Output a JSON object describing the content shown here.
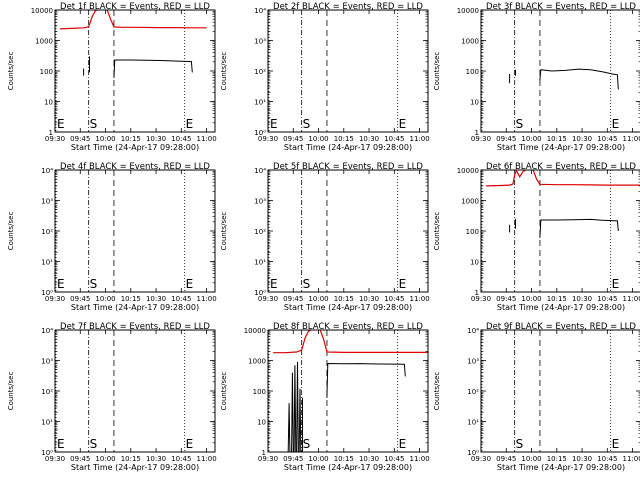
{
  "chart_data": [
    {
      "type": "line",
      "title": "Det 1f BLACK = Events, RED = LLD",
      "xlabel": "Start Time (24-Apr-17 09:28:00)",
      "ylabel": "Counts/sec",
      "x_ticks": [
        "09:30",
        "09:45",
        "10:00",
        "10:15",
        "10:30",
        "10:45",
        "11:00"
      ],
      "x_range": [
        0,
        95
      ],
      "y_scale": "log",
      "y_range": [
        1,
        10000
      ],
      "y_ticks": [
        "1",
        "10",
        "100",
        "1000",
        "10000"
      ],
      "markers": [
        {
          "label": "E",
          "x": -1,
          "style": "dotted"
        },
        {
          "label": "S",
          "x": 20,
          "style": "dashdot"
        },
        {
          "label": "",
          "x": 35,
          "style": "dashed"
        },
        {
          "label": "E",
          "x": 77,
          "style": "dotted"
        }
      ],
      "series": [
        {
          "name": "Events",
          "color": "#000000",
          "segments": [
            [
              [
                17,
                70
              ],
              [
                17,
                90
              ],
              [
                17,
                120
              ]
            ],
            [
              [
                20.5,
                90
              ],
              [
                20.5,
                140
              ],
              [
                20.5,
                300
              ]
            ],
            [
              [
                35,
                60
              ],
              [
                35.5,
                230
              ],
              [
                45,
                230
              ],
              [
                55,
                225
              ],
              [
                65,
                220
              ],
              [
                75,
                210
              ],
              [
                81,
                205
              ],
              [
                81.5,
                90
              ]
            ]
          ]
        },
        {
          "name": "LLD",
          "color": "#dd0000",
          "segments": [
            [
              [
                3,
                2400
              ],
              [
                10,
                2500
              ],
              [
                17,
                2600
              ],
              [
                20,
                2800
              ],
              [
                22,
                6000
              ],
              [
                24,
                9500
              ],
              [
                27,
                11000
              ],
              [
                31,
                10000
              ],
              [
                33,
                5000
              ],
              [
                35,
                2800
              ],
              [
                40,
                2700
              ],
              [
                50,
                2700
              ],
              [
                60,
                2650
              ],
              [
                70,
                2650
              ],
              [
                80,
                2600
              ],
              [
                90,
                2600
              ]
            ]
          ]
        }
      ]
    },
    {
      "type": "line",
      "title": "Det 2f BLACK = Events, RED = LLD",
      "xlabel": "Start Time (24-Apr-17 09:28:00)",
      "ylabel": "Counts/sec",
      "x_ticks": [
        "09:30",
        "09:45",
        "10:00",
        "10:15",
        "10:30",
        "10:45",
        "11:00"
      ],
      "x_range": [
        0,
        95
      ],
      "y_scale": "log",
      "y_range": [
        1,
        10000
      ],
      "y_ticks": [
        "10⁰",
        "10¹",
        "10²",
        "10³",
        "10⁴"
      ],
      "markers": [
        {
          "label": "E",
          "x": -1,
          "style": "dotted"
        },
        {
          "label": "S",
          "x": 20,
          "style": "dashdot"
        },
        {
          "label": "",
          "x": 35,
          "style": "dashed"
        },
        {
          "label": "E",
          "x": 77,
          "style": "dotted"
        }
      ],
      "series": []
    },
    {
      "type": "line",
      "title": "Det 3f BLACK = Events, RED = LLD",
      "xlabel": "Start Time (24-Apr-17 09:28:00)",
      "ylabel": "Counts/sec",
      "x_ticks": [
        "09:30",
        "09:45",
        "10:00",
        "10:15",
        "10:30",
        "10:45",
        "11:00"
      ],
      "x_range": [
        0,
        95
      ],
      "y_scale": "log",
      "y_range": [
        1,
        10000
      ],
      "y_ticks": [
        "1",
        "10",
        "100",
        "1000",
        "10000"
      ],
      "markers": [
        {
          "label": "",
          "x": -1,
          "style": "dotted"
        },
        {
          "label": "S",
          "x": 20,
          "style": "dashdot"
        },
        {
          "label": "",
          "x": 35,
          "style": "dashed"
        },
        {
          "label": "E",
          "x": 77,
          "style": "dotted"
        }
      ],
      "series": [
        {
          "name": "Events",
          "color": "#000000",
          "segments": [
            [
              [
                17,
                40
              ],
              [
                17,
                60
              ],
              [
                17,
                80
              ]
            ],
            [
              [
                20.5,
                70
              ],
              [
                20.5,
                110
              ]
            ],
            [
              [
                35,
                50
              ],
              [
                35.5,
                110
              ],
              [
                42,
                100
              ],
              [
                50,
                105
              ],
              [
                58,
                115
              ],
              [
                65,
                110
              ],
              [
                72,
                95
              ],
              [
                78,
                80
              ],
              [
                81,
                75
              ],
              [
                81.5,
                25
              ]
            ]
          ]
        }
      ]
    },
    {
      "type": "line",
      "title": "Det 4f BLACK = Events, RED = LLD",
      "xlabel": "Start Time (24-Apr-17 09:28:00)",
      "ylabel": "Counts/sec",
      "x_ticks": [
        "09:30",
        "09:45",
        "10:00",
        "10:15",
        "10:30",
        "10:45",
        "11:00"
      ],
      "x_range": [
        0,
        95
      ],
      "y_scale": "log",
      "y_range": [
        1,
        10000
      ],
      "y_ticks": [
        "10⁰",
        "10¹",
        "10²",
        "10³",
        "10⁴"
      ],
      "markers": [
        {
          "label": "E",
          "x": -1,
          "style": "dotted"
        },
        {
          "label": "S",
          "x": 20,
          "style": "dashdot"
        },
        {
          "label": "",
          "x": 35,
          "style": "dashed"
        },
        {
          "label": "E",
          "x": 77,
          "style": "dotted"
        }
      ],
      "series": []
    },
    {
      "type": "line",
      "title": "Det 5f BLACK = Events, RED = LLD",
      "xlabel": "Start Time (24-Apr-17 09:28:00)",
      "ylabel": "Counts/sec",
      "x_ticks": [
        "09:30",
        "09:45",
        "10:00",
        "10:15",
        "10:30",
        "10:45",
        "11:00"
      ],
      "x_range": [
        0,
        95
      ],
      "y_scale": "log",
      "y_range": [
        1,
        10000
      ],
      "y_ticks": [
        "10⁰",
        "10¹",
        "10²",
        "10³",
        "10⁴"
      ],
      "markers": [
        {
          "label": "E",
          "x": -1,
          "style": "dotted"
        },
        {
          "label": "S",
          "x": 20,
          "style": "dashdot"
        },
        {
          "label": "",
          "x": 35,
          "style": "dashed"
        },
        {
          "label": "E",
          "x": 77,
          "style": "dotted"
        }
      ],
      "series": []
    },
    {
      "type": "line",
      "title": "Det 6f BLACK = Events, RED = LLD",
      "xlabel": "Start Time (24-Apr-17 09:28:00)",
      "ylabel": "Counts/sec",
      "x_ticks": [
        "09:30",
        "09:45",
        "10:00",
        "10:15",
        "10:30",
        "10:45",
        "11:00"
      ],
      "x_range": [
        0,
        95
      ],
      "y_scale": "log",
      "y_range": [
        1,
        10000
      ],
      "y_ticks": [
        "1",
        "10",
        "100",
        "1000",
        "10000"
      ],
      "markers": [
        {
          "label": "",
          "x": -1,
          "style": "dotted"
        },
        {
          "label": "",
          "x": 20,
          "style": "dashdot"
        },
        {
          "label": "",
          "x": 35,
          "style": "dashed"
        },
        {
          "label": "E",
          "x": 77,
          "style": "dotted"
        }
      ],
      "series": [
        {
          "name": "Events",
          "color": "#000000",
          "segments": [
            [
              [
                17,
                90
              ],
              [
                17,
                130
              ],
              [
                17,
                160
              ]
            ],
            [
              [
                20.5,
                120
              ],
              [
                20.5,
                250
              ]
            ],
            [
              [
                35,
                60
              ],
              [
                35.5,
                230
              ],
              [
                45,
                230
              ],
              [
                55,
                235
              ],
              [
                65,
                240
              ],
              [
                72,
                225
              ],
              [
                81,
                215
              ],
              [
                81.5,
                100
              ]
            ]
          ]
        },
        {
          "name": "LLD",
          "color": "#dd0000",
          "segments": [
            [
              [
                3,
                3000
              ],
              [
                12,
                3100
              ],
              [
                17,
                3200
              ],
              [
                19,
                3500
              ],
              [
                20,
                7000
              ],
              [
                21,
                9500
              ],
              [
                23,
                6000
              ],
              [
                25,
                9000
              ],
              [
                28,
                11000
              ],
              [
                31,
                10000
              ],
              [
                33,
                5000
              ],
              [
                35,
                3400
              ],
              [
                45,
                3300
              ],
              [
                55,
                3300
              ],
              [
                65,
                3250
              ],
              [
                75,
                3200
              ],
              [
                85,
                3200
              ],
              [
                95,
                3200
              ]
            ]
          ]
        }
      ]
    },
    {
      "type": "line",
      "title": "Det 7f BLACK = Events, RED = LLD",
      "xlabel": "Start Time (24-Apr-17 09:28:00)",
      "ylabel": "Counts/sec",
      "x_ticks": [
        "09:30",
        "09:45",
        "10:00",
        "10:15",
        "10:30",
        "10:45",
        "11:00"
      ],
      "x_range": [
        0,
        95
      ],
      "y_scale": "log",
      "y_range": [
        1,
        10000
      ],
      "y_ticks": [
        "10⁰",
        "10¹",
        "10²",
        "10³",
        "10⁴"
      ],
      "markers": [
        {
          "label": "E",
          "x": -1,
          "style": "dotted"
        },
        {
          "label": "S",
          "x": 20,
          "style": "dashdot"
        },
        {
          "label": "",
          "x": 35,
          "style": "dashed"
        },
        {
          "label": "E",
          "x": 77,
          "style": "dotted"
        }
      ],
      "series": []
    },
    {
      "type": "line",
      "title": "Det 8f BLACK = Events, RED = LLD",
      "xlabel": "Start Time (24-Apr-17 09:28:00)",
      "ylabel": "Counts/sec",
      "x_ticks": [
        "09:30",
        "09:45",
        "10:00",
        "10:15",
        "10:30",
        "10:45",
        "11:00"
      ],
      "x_range": [
        0,
        95
      ],
      "y_scale": "log",
      "y_range": [
        1,
        10000
      ],
      "y_ticks": [
        "1",
        "10",
        "100",
        "1000",
        "10000"
      ],
      "markers": [
        {
          "label": "",
          "x": -1,
          "style": "dotted"
        },
        {
          "label": "S",
          "x": 20,
          "style": "dashdot"
        },
        {
          "label": "",
          "x": 35,
          "style": "dashed"
        },
        {
          "label": "E",
          "x": 77,
          "style": "dotted"
        }
      ],
      "series": [
        {
          "name": "Events",
          "color": "#000000",
          "segments": [
            [
              [
                12,
                1
              ],
              [
                12.5,
                40
              ],
              [
                13,
                1
              ]
            ],
            [
              [
                14,
                1
              ],
              [
                14.5,
                400
              ],
              [
                15,
                1
              ]
            ],
            [
              [
                15.5,
                1
              ],
              [
                16,
                700
              ],
              [
                16.5,
                1
              ]
            ],
            [
              [
                17,
                1
              ],
              [
                17.5,
                900
              ],
              [
                18,
                1
              ]
            ],
            [
              [
                18.5,
                1
              ],
              [
                19,
                120
              ],
              [
                19.5,
                1
              ]
            ],
            [
              [
                20.5,
                1
              ],
              [
                20.5,
                60
              ]
            ],
            [
              [
                35,
                60
              ],
              [
                35.5,
                800
              ],
              [
                45,
                780
              ],
              [
                55,
                790
              ],
              [
                65,
                770
              ],
              [
                75,
                760
              ],
              [
                81,
                750
              ],
              [
                81.5,
                300
              ]
            ]
          ]
        },
        {
          "name": "LLD",
          "color": "#dd0000",
          "segments": [
            [
              [
                3,
                1800
              ],
              [
                10,
                1800
              ],
              [
                17,
                1900
              ],
              [
                20,
                2200
              ],
              [
                22,
                5500
              ],
              [
                24,
                9000
              ],
              [
                27,
                11000
              ],
              [
                31,
                10000
              ],
              [
                33,
                5000
              ],
              [
                35,
                1900
              ],
              [
                45,
                1850
              ],
              [
                55,
                1850
              ],
              [
                65,
                1850
              ],
              [
                75,
                1850
              ],
              [
                85,
                1850
              ],
              [
                95,
                1850
              ]
            ]
          ]
        }
      ]
    },
    {
      "type": "line",
      "title": "Det 9f BLACK = Events, RED = LLD",
      "xlabel": "Start Time (24-Apr-17 09:28:00)",
      "ylabel": "Counts/sec",
      "x_ticks": [
        "09:30",
        "09:45",
        "10:00",
        "10:15",
        "10:30",
        "10:45",
        "11:00"
      ],
      "x_range": [
        0,
        95
      ],
      "y_scale": "log",
      "y_range": [
        1,
        10000
      ],
      "y_ticks": [
        "10⁰",
        "10¹",
        "10²",
        "10³",
        "10⁴"
      ],
      "markers": [
        {
          "label": "",
          "x": -1,
          "style": "dotted"
        },
        {
          "label": "S",
          "x": 20,
          "style": "dashdot"
        },
        {
          "label": "",
          "x": 35,
          "style": "dashed"
        },
        {
          "label": "E",
          "x": 77,
          "style": "dotted"
        }
      ],
      "series": []
    }
  ]
}
